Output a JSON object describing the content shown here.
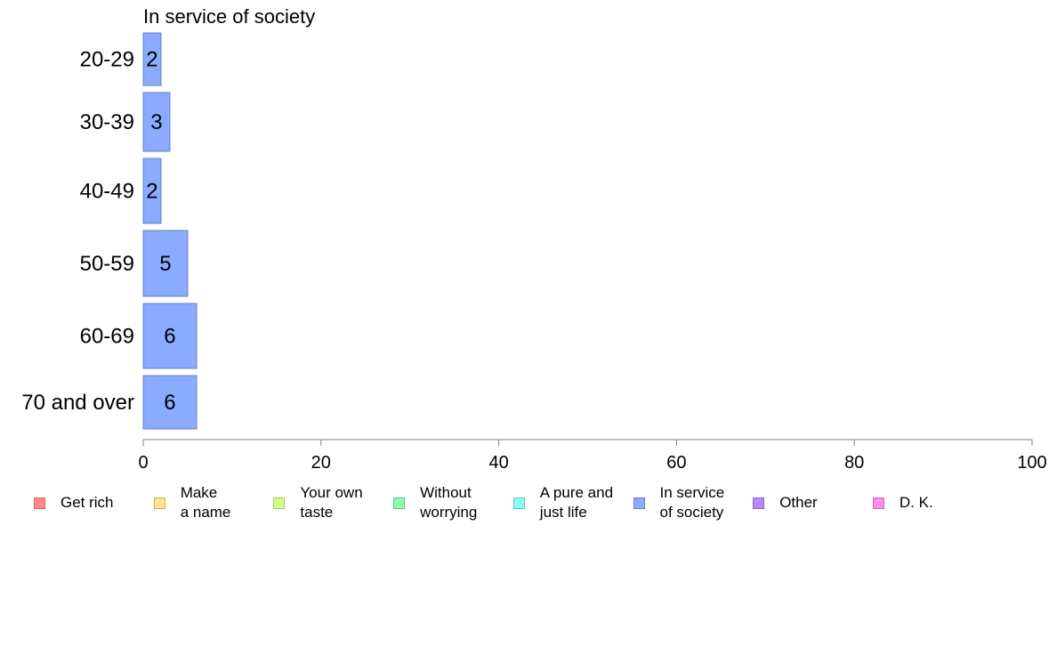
{
  "chart_data": {
    "type": "bar",
    "orientation": "horizontal",
    "title": "In service of society",
    "categories": [
      "20-29",
      "30-39",
      "40-49",
      "50-59",
      "60-69",
      "70 and over"
    ],
    "values": [
      2,
      3,
      2,
      5,
      6,
      6
    ],
    "value_labels": [
      "2",
      "3",
      "2",
      "5",
      "6",
      "6"
    ],
    "xlim": [
      0,
      100
    ],
    "xticks": [
      0,
      20,
      40,
      60,
      80,
      100
    ],
    "grid": false,
    "bar_color": "#8aabff",
    "bar_border_color": "#6a7fc0",
    "legend_placement": "bottom",
    "legend": [
      {
        "label": "Get rich",
        "color": "#ff8a8a",
        "border": "#cc6a6a"
      },
      {
        "label": "Make\na name",
        "color": "#ffe58a",
        "border": "#c9b060"
      },
      {
        "label": "Your own\ntaste",
        "color": "#d4ff8a",
        "border": "#a6c866"
      },
      {
        "label": "Without\nworrying",
        "color": "#8affb0",
        "border": "#60c483"
      },
      {
        "label": "A pure and\njust life",
        "color": "#8afff0",
        "border": "#60c4b8"
      },
      {
        "label": "In service\nof society",
        "color": "#8aabff",
        "border": "#6a7fc0"
      },
      {
        "label": "Other",
        "color": "#b58aff",
        "border": "#8a66c4"
      },
      {
        "label": "D. K.",
        "color": "#ff8af0",
        "border": "#c466b8"
      }
    ]
  }
}
